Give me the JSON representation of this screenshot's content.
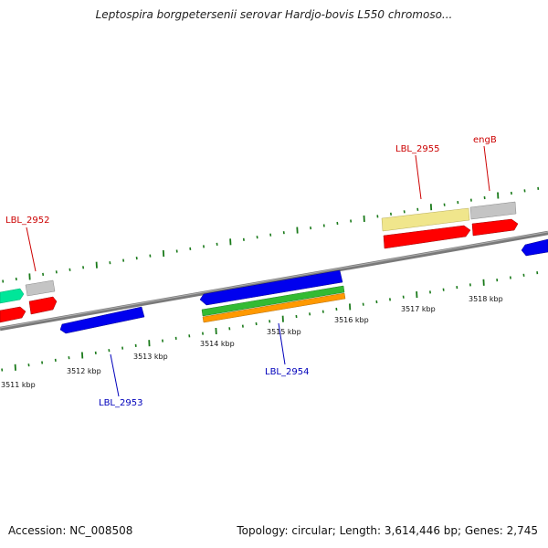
{
  "title": "Leptospira borgpetersenii serovar Hardjo-bovis L550 chromoso...",
  "footer": {
    "accession": "Accession: NC_008508",
    "summary": "Topology: circular; Length: 3,614,446 bp; Genes: 2,745"
  },
  "colors": {
    "backbone": "#808080",
    "forward_gene": "#ff0000",
    "reverse_gene": "#0000ee",
    "tick": "#1a7a1a",
    "forward_label": "#cc0000",
    "reverse_label": "#0000bb",
    "cds_green": "#33bb33",
    "cds_orange": "#ff9900",
    "cds_teal": "#00e699",
    "cds_gray": "#bbbbbb",
    "cds_khaki": "#f0e68c"
  },
  "scale_labels": [
    "3511 kbp",
    "3512 kbp",
    "3513 kbp",
    "3514 kbp",
    "3515 kbp",
    "3516 kbp",
    "3517 kbp",
    "3518 kbp"
  ],
  "gene_labels": [
    {
      "id": "lbl2952",
      "text": "LBL_2952",
      "strand": "forward"
    },
    {
      "id": "lbl2955",
      "text": "LBL_2955",
      "strand": "forward"
    },
    {
      "id": "engB",
      "text": "engB",
      "strand": "forward"
    },
    {
      "id": "lbl2953",
      "text": "LBL_2953",
      "strand": "reverse"
    },
    {
      "id": "lbl2954",
      "text": "LBL_2954",
      "strand": "reverse"
    }
  ]
}
